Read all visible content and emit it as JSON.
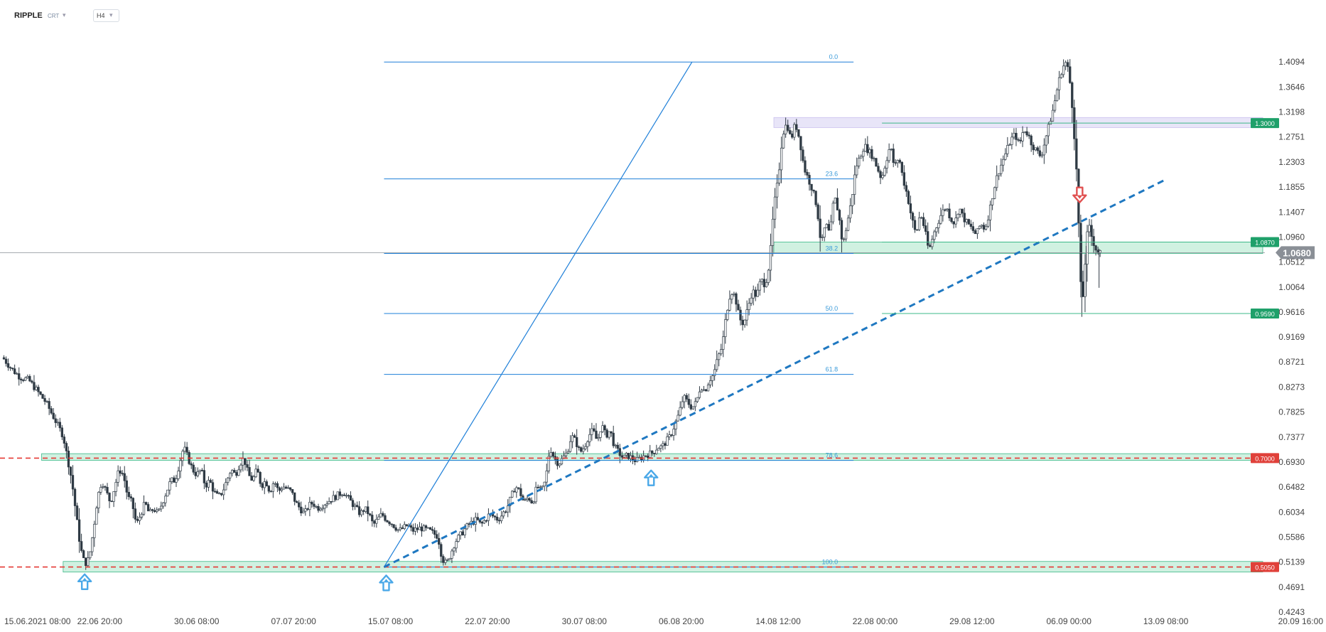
{
  "toolbar": {
    "symbol": "RIPPLE",
    "market": "CRT",
    "timeframe": "H4",
    "caret": "▾"
  },
  "colors": {
    "fib": "#1e7fd8",
    "fibLabel": "#3a9ad9",
    "trendline": "#1f78c1",
    "support": "#e53935",
    "zoneFill": "rgba(120,215,170,0.35)",
    "zoneStroke": "#3cb888",
    "resistanceZone": "rgba(190,180,235,0.35)",
    "priceTag": "#1fa06a",
    "redTag": "#e0413a",
    "currentTag": "#8a8f96",
    "candle": "#2f3a44",
    "arrowUp": "#4aa8e8",
    "arrowDown": "#e05050",
    "axisText": "#444444"
  },
  "chart_data": {
    "type": "candlestick",
    "title": "",
    "xlabel": "",
    "ylabel": "",
    "ylim": [
      0.4243,
      1.4542
    ],
    "y_ticks": [
      "1.4094",
      "1.3646",
      "1.3198",
      "1.2751",
      "1.2303",
      "1.1855",
      "1.1407",
      "1.0960",
      "1.0512",
      "1.0064",
      "0.9616",
      "0.9169",
      "0.8721",
      "0.8273",
      "0.7825",
      "0.7377",
      "0.6930",
      "0.6482",
      "0.6034",
      "0.5586",
      "0.5139",
      "0.4691",
      "0.4243"
    ],
    "x_ticks": [
      "15.06.2021 08:00",
      "22.06 20:00",
      "30.06 08:00",
      "07.07 20:00",
      "15.07 08:00",
      "22.07 20:00",
      "30.07 08:00",
      "06.08 20:00",
      "14.08 12:00",
      "22.08 00:00",
      "29.08 12:00",
      "06.09 00:00",
      "13.09 08:00",
      "20.09 16:00"
    ],
    "x_tick_values": [
      0,
      45,
      90,
      135,
      180,
      225,
      270,
      315,
      360,
      405,
      450,
      495,
      540,
      585
    ],
    "current_price": "1.0680",
    "price_path": [
      [
        0,
        0.88
      ],
      [
        4,
        0.86
      ],
      [
        8,
        0.845
      ],
      [
        12,
        0.84
      ],
      [
        16,
        0.82
      ],
      [
        20,
        0.8
      ],
      [
        24,
        0.77
      ],
      [
        28,
        0.74
      ],
      [
        30,
        0.7
      ],
      [
        32,
        0.66
      ],
      [
        34,
        0.6
      ],
      [
        36,
        0.54
      ],
      [
        38,
        0.51
      ],
      [
        40,
        0.52
      ],
      [
        42,
        0.57
      ],
      [
        44,
        0.63
      ],
      [
        46,
        0.66
      ],
      [
        48,
        0.64
      ],
      [
        50,
        0.62
      ],
      [
        52,
        0.65
      ],
      [
        54,
        0.68
      ],
      [
        56,
        0.67
      ],
      [
        58,
        0.63
      ],
      [
        60,
        0.62
      ],
      [
        62,
        0.58
      ],
      [
        64,
        0.6
      ],
      [
        66,
        0.62
      ],
      [
        68,
        0.6
      ],
      [
        70,
        0.61
      ],
      [
        72,
        0.6
      ],
      [
        74,
        0.62
      ],
      [
        76,
        0.64
      ],
      [
        78,
        0.66
      ],
      [
        80,
        0.66
      ],
      [
        82,
        0.69
      ],
      [
        84,
        0.72
      ],
      [
        86,
        0.7
      ],
      [
        88,
        0.68
      ],
      [
        90,
        0.67
      ],
      [
        92,
        0.68
      ],
      [
        94,
        0.65
      ],
      [
        96,
        0.66
      ],
      [
        98,
        0.64
      ],
      [
        100,
        0.63
      ],
      [
        102,
        0.64
      ],
      [
        104,
        0.66
      ],
      [
        106,
        0.68
      ],
      [
        108,
        0.67
      ],
      [
        110,
        0.69
      ],
      [
        112,
        0.7
      ],
      [
        114,
        0.67
      ],
      [
        116,
        0.66
      ],
      [
        118,
        0.68
      ],
      [
        120,
        0.65
      ],
      [
        122,
        0.66
      ],
      [
        124,
        0.64
      ],
      [
        126,
        0.66
      ],
      [
        128,
        0.64
      ],
      [
        130,
        0.65
      ],
      [
        134,
        0.64
      ],
      [
        136,
        0.62
      ],
      [
        138,
        0.61
      ],
      [
        140,
        0.6
      ],
      [
        142,
        0.615
      ],
      [
        144,
        0.62
      ],
      [
        146,
        0.61
      ],
      [
        150,
        0.62
      ],
      [
        154,
        0.63
      ],
      [
        158,
        0.64
      ],
      [
        160,
        0.63
      ],
      [
        162,
        0.62
      ],
      [
        164,
        0.61
      ],
      [
        166,
        0.6
      ],
      [
        168,
        0.61
      ],
      [
        170,
        0.6
      ],
      [
        172,
        0.58
      ],
      [
        174,
        0.59
      ],
      [
        176,
        0.6
      ],
      [
        178,
        0.59
      ],
      [
        180,
        0.585
      ],
      [
        184,
        0.57
      ],
      [
        188,
        0.58
      ],
      [
        190,
        0.57
      ],
      [
        194,
        0.575
      ],
      [
        198,
        0.57
      ],
      [
        202,
        0.56
      ],
      [
        204,
        0.52
      ],
      [
        206,
        0.51
      ],
      [
        208,
        0.53
      ],
      [
        210,
        0.55
      ],
      [
        212,
        0.56
      ],
      [
        214,
        0.57
      ],
      [
        216,
        0.58
      ],
      [
        218,
        0.585
      ],
      [
        220,
        0.59
      ],
      [
        222,
        0.58
      ],
      [
        226,
        0.6
      ],
      [
        230,
        0.59
      ],
      [
        234,
        0.61
      ],
      [
        236,
        0.63
      ],
      [
        238,
        0.65
      ],
      [
        240,
        0.64
      ],
      [
        242,
        0.62
      ],
      [
        244,
        0.63
      ],
      [
        246,
        0.62
      ],
      [
        248,
        0.65
      ],
      [
        250,
        0.64
      ],
      [
        252,
        0.66
      ],
      [
        254,
        0.72
      ],
      [
        256,
        0.7
      ],
      [
        258,
        0.69
      ],
      [
        260,
        0.7
      ],
      [
        262,
        0.71
      ],
      [
        264,
        0.74
      ],
      [
        266,
        0.73
      ],
      [
        268,
        0.71
      ],
      [
        270,
        0.72
      ],
      [
        272,
        0.74
      ],
      [
        274,
        0.75
      ],
      [
        276,
        0.73
      ],
      [
        278,
        0.76
      ],
      [
        280,
        0.74
      ],
      [
        282,
        0.75
      ],
      [
        284,
        0.72
      ],
      [
        286,
        0.71
      ],
      [
        288,
        0.7
      ],
      [
        290,
        0.705
      ],
      [
        292,
        0.7
      ],
      [
        294,
        0.695
      ],
      [
        296,
        0.7
      ],
      [
        298,
        0.705
      ],
      [
        302,
        0.71
      ],
      [
        304,
        0.72
      ],
      [
        306,
        0.72
      ],
      [
        308,
        0.73
      ],
      [
        310,
        0.74
      ],
      [
        312,
        0.76
      ],
      [
        314,
        0.78
      ],
      [
        316,
        0.81
      ],
      [
        318,
        0.8
      ],
      [
        320,
        0.79
      ],
      [
        322,
        0.8
      ],
      [
        324,
        0.83
      ],
      [
        326,
        0.82
      ],
      [
        328,
        0.84
      ],
      [
        330,
        0.85
      ],
      [
        332,
        0.88
      ],
      [
        334,
        0.9
      ],
      [
        336,
        0.96
      ],
      [
        338,
        1.0
      ],
      [
        340,
        0.99
      ],
      [
        342,
        0.95
      ],
      [
        344,
        0.94
      ],
      [
        346,
        0.97
      ],
      [
        348,
        1.0
      ],
      [
        350,
        0.99
      ],
      [
        352,
        1.02
      ],
      [
        354,
        1.01
      ],
      [
        356,
        1.05
      ],
      [
        358,
        1.15
      ],
      [
        360,
        1.2
      ],
      [
        362,
        1.28
      ],
      [
        364,
        1.3
      ],
      [
        366,
        1.27
      ],
      [
        368,
        1.3
      ],
      [
        370,
        1.27
      ],
      [
        372,
        1.22
      ],
      [
        374,
        1.2
      ],
      [
        376,
        1.18
      ],
      [
        378,
        1.15
      ],
      [
        380,
        1.08
      ],
      [
        382,
        1.12
      ],
      [
        384,
        1.1
      ],
      [
        386,
        1.17
      ],
      [
        388,
        1.14
      ],
      [
        390,
        1.08
      ],
      [
        392,
        1.12
      ],
      [
        394,
        1.16
      ],
      [
        396,
        1.22
      ],
      [
        398,
        1.24
      ],
      [
        400,
        1.26
      ],
      [
        402,
        1.25
      ],
      [
        404,
        1.24
      ],
      [
        406,
        1.22
      ],
      [
        408,
        1.2
      ],
      [
        410,
        1.23
      ],
      [
        412,
        1.26
      ],
      [
        414,
        1.22
      ],
      [
        416,
        1.24
      ],
      [
        418,
        1.2
      ],
      [
        420,
        1.17
      ],
      [
        422,
        1.13
      ],
      [
        424,
        1.1
      ],
      [
        426,
        1.14
      ],
      [
        428,
        1.11
      ],
      [
        430,
        1.07
      ],
      [
        432,
        1.1
      ],
      [
        434,
        1.12
      ],
      [
        436,
        1.14
      ],
      [
        438,
        1.15
      ],
      [
        440,
        1.13
      ],
      [
        442,
        1.12
      ],
      [
        444,
        1.15
      ],
      [
        446,
        1.13
      ],
      [
        448,
        1.12
      ],
      [
        450,
        1.11
      ],
      [
        452,
        1.1
      ],
      [
        454,
        1.12
      ],
      [
        456,
        1.11
      ],
      [
        458,
        1.14
      ],
      [
        460,
        1.18
      ],
      [
        462,
        1.21
      ],
      [
        464,
        1.23
      ],
      [
        466,
        1.25
      ],
      [
        468,
        1.27
      ],
      [
        470,
        1.28
      ],
      [
        472,
        1.26
      ],
      [
        474,
        1.29
      ],
      [
        476,
        1.28
      ],
      [
        478,
        1.26
      ],
      [
        480,
        1.25
      ],
      [
        482,
        1.24
      ],
      [
        484,
        1.27
      ],
      [
        486,
        1.3
      ],
      [
        488,
        1.33
      ],
      [
        490,
        1.37
      ],
      [
        492,
        1.4
      ],
      [
        494,
        1.41
      ],
      [
        496,
        1.36
      ],
      [
        498,
        1.25
      ],
      [
        499,
        1.18
      ],
      [
        500,
        1.06
      ],
      [
        501,
        0.96
      ],
      [
        502,
        1.02
      ],
      [
        503,
        1.08
      ],
      [
        504,
        1.12
      ],
      [
        506,
        1.09
      ],
      [
        508,
        1.07
      ],
      [
        510,
        1.068
      ]
    ]
  },
  "fib": {
    "x_start": 177,
    "x_end": 395,
    "levels": [
      {
        "label": "0.0",
        "price": 1.4094
      },
      {
        "label": "23.6",
        "price": 1.2
      },
      {
        "label": "38.2",
        "price": 1.0665
      },
      {
        "label": "50.0",
        "price": 0.959
      },
      {
        "label": "61.8",
        "price": 0.85
      },
      {
        "label": "78.6",
        "price": 0.696
      },
      {
        "label": "100.0",
        "price": 0.505
      }
    ]
  },
  "trendlines": [
    {
      "x1": 177,
      "y1": 0.505,
      "x2": 320,
      "y2": 1.4094,
      "style": "solid"
    },
    {
      "x1": 177,
      "y1": 0.505,
      "x2": 540,
      "y2": 1.199,
      "style": "dashed"
    }
  ],
  "horizontal_lines": [
    {
      "price": 0.7,
      "label": "0.7000",
      "style": "dashed"
    },
    {
      "price": 0.505,
      "label": "0.5050",
      "style": "dashed"
    },
    {
      "price": 1.068,
      "style": "solid"
    }
  ],
  "zones": [
    {
      "x1": 18,
      "x2": 585,
      "top": 0.708,
      "bottom": 0.696,
      "kind": "support"
    },
    {
      "x1": 28,
      "x2": 585,
      "top": 0.515,
      "bottom": 0.496,
      "kind": "support"
    },
    {
      "x1": 358,
      "x2": 585,
      "top": 1.087,
      "bottom": 1.0665,
      "kind": "support"
    },
    {
      "x1": 358,
      "x2": 585,
      "top": 1.31,
      "bottom": 1.292,
      "kind": "resistance"
    }
  ],
  "price_tags": [
    {
      "label": "1.3000",
      "price": 1.3,
      "kind": "green"
    },
    {
      "label": "1.0870",
      "price": 1.087,
      "kind": "green"
    },
    {
      "label": "0.9590",
      "price": 0.959,
      "kind": "green"
    },
    {
      "label": "0.7000",
      "price": 0.7,
      "kind": "red"
    },
    {
      "label": "0.5050",
      "price": 0.505,
      "kind": "red"
    }
  ],
  "arrows": [
    {
      "x": 38,
      "price": 0.478,
      "dir": "up"
    },
    {
      "x": 178,
      "price": 0.476,
      "dir": "up"
    },
    {
      "x": 301,
      "price": 0.664,
      "dir": "up"
    },
    {
      "x": 500,
      "price": 1.172,
      "dir": "down"
    }
  ]
}
